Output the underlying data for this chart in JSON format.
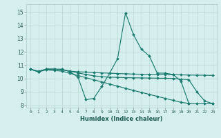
{
  "xlabel": "Humidex (Indice chaleur)",
  "bg_color": "#d5efee",
  "grid_color": "#c0dedd",
  "line_color": "#1a7a6e",
  "xlim": [
    -0.5,
    23.5
  ],
  "ylim": [
    7.8,
    15.6
  ],
  "xticks": [
    0,
    1,
    2,
    3,
    4,
    5,
    6,
    7,
    8,
    9,
    10,
    11,
    12,
    13,
    14,
    15,
    16,
    17,
    18,
    19,
    20,
    21,
    22,
    23
  ],
  "yticks": [
    8,
    9,
    10,
    11,
    12,
    13,
    14,
    15
  ],
  "series": [
    {
      "x": [
        0,
        1,
        2,
        3,
        4,
        5,
        6,
        7,
        8,
        9,
        10,
        11,
        12,
        13,
        14,
        15,
        16,
        17,
        18,
        19,
        20
      ],
      "y": [
        10.7,
        10.5,
        10.7,
        10.7,
        10.7,
        10.5,
        10.1,
        8.4,
        8.5,
        9.4,
        10.4,
        11.5,
        14.95,
        13.3,
        12.2,
        11.7,
        10.4,
        10.4,
        10.3,
        9.8,
        8.1
      ]
    },
    {
      "x": [
        0,
        1,
        2,
        3,
        4,
        5,
        6,
        7,
        8,
        9,
        10,
        11,
        12,
        13,
        14,
        15,
        16,
        17,
        18,
        19,
        20,
        21,
        22,
        23
      ],
      "y": [
        10.7,
        10.5,
        10.7,
        10.7,
        10.65,
        10.55,
        10.5,
        10.48,
        10.45,
        10.42,
        10.4,
        10.37,
        10.35,
        10.33,
        10.32,
        10.31,
        10.3,
        10.29,
        10.28,
        10.27,
        10.26,
        10.25,
        10.24,
        10.23
      ]
    },
    {
      "x": [
        0,
        1,
        2,
        3,
        4,
        5,
        6,
        7,
        8,
        9,
        10,
        11,
        12,
        13,
        14,
        15,
        16,
        17,
        18,
        19,
        20,
        21,
        22,
        23
      ],
      "y": [
        10.7,
        10.55,
        10.7,
        10.7,
        10.65,
        10.55,
        10.42,
        10.3,
        10.2,
        10.13,
        10.1,
        10.08,
        10.06,
        10.05,
        10.04,
        10.03,
        10.02,
        10.01,
        10.0,
        9.95,
        9.9,
        9.0,
        8.3,
        8.1
      ]
    },
    {
      "x": [
        0,
        1,
        2,
        3,
        4,
        5,
        6,
        7,
        8,
        9,
        10,
        11,
        12,
        13,
        14,
        15,
        16,
        17,
        18,
        19,
        20,
        21,
        22,
        23
      ],
      "y": [
        10.7,
        10.5,
        10.65,
        10.6,
        10.55,
        10.38,
        10.22,
        10.06,
        9.9,
        9.74,
        9.58,
        9.42,
        9.26,
        9.1,
        8.95,
        8.8,
        8.65,
        8.5,
        8.35,
        8.2,
        8.12,
        8.1,
        8.1,
        8.1
      ]
    }
  ]
}
